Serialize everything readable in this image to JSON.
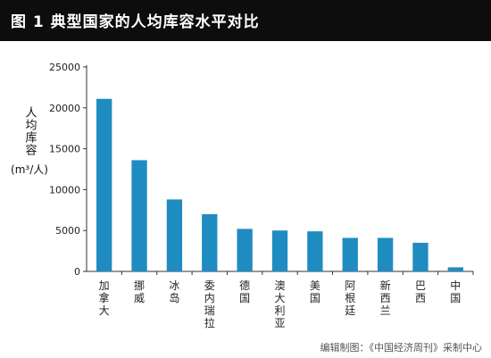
{
  "header": {
    "title": "图 1  典型国家的人均库容水平对比",
    "background": "#0d0d0d",
    "text_color": "#ffffff"
  },
  "chart_data": {
    "type": "bar",
    "title": "图 1  典型国家的人均库容水平对比",
    "ylabel": "人均库容",
    "yunit": "(m³/人)",
    "categories": [
      "加拿大",
      "挪威",
      "冰岛",
      "委内瑞拉",
      "德国",
      "澳大利亚",
      "美国",
      "阿根廷",
      "新西兰",
      "巴西",
      "中国"
    ],
    "values": [
      21100,
      13600,
      8800,
      7000,
      5200,
      5000,
      4900,
      4100,
      4100,
      3500,
      500
    ],
    "ylim": [
      0,
      25000
    ],
    "yticks": [
      0,
      5000,
      10000,
      15000,
      20000,
      25000
    ],
    "bar_color": "#1f8cc1",
    "grid": false,
    "legend": "none"
  },
  "source": "编辑制图：《中国经济周刊》采制中心"
}
